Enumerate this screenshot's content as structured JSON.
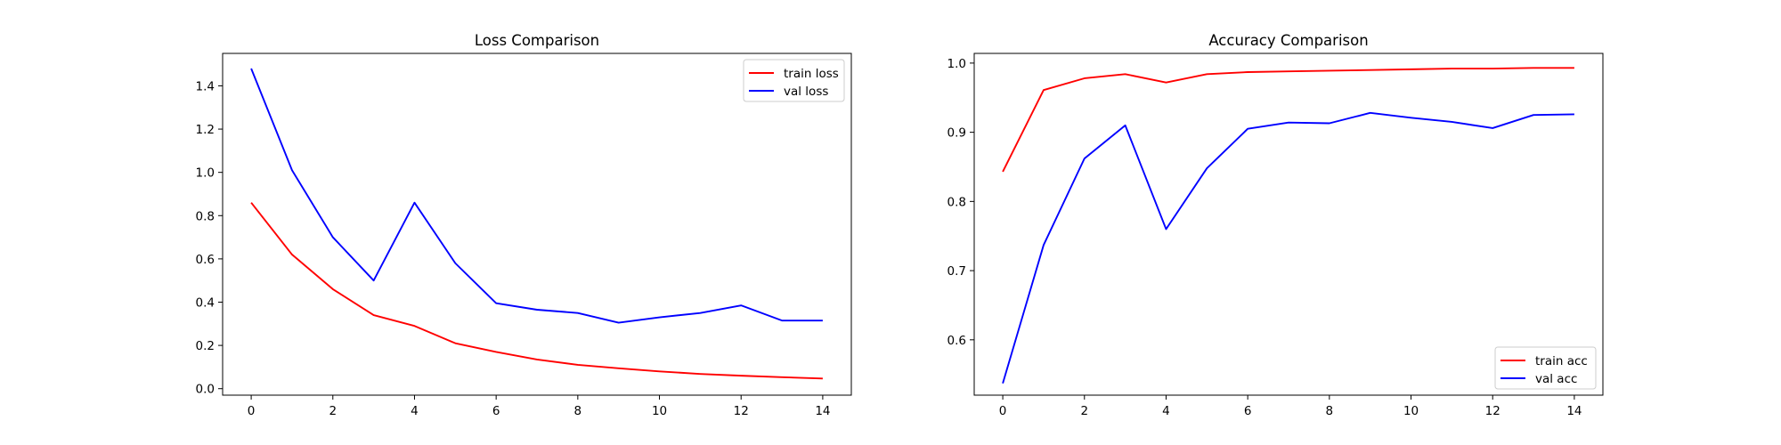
{
  "chart_data": [
    {
      "type": "line",
      "title": "Loss Comparison",
      "xlabel": "",
      "ylabel": "",
      "x": [
        0,
        1,
        2,
        3,
        4,
        5,
        6,
        7,
        8,
        9,
        10,
        11,
        12,
        13,
        14
      ],
      "xlim": [
        -0.7,
        14.7
      ],
      "ylim": [
        -0.03,
        1.55
      ],
      "xticks": [
        0,
        2,
        4,
        6,
        8,
        10,
        12,
        14
      ],
      "xtick_labels": [
        "0",
        "2",
        "4",
        "6",
        "8",
        "10",
        "12",
        "14"
      ],
      "yticks": [
        0.0,
        0.2,
        0.4,
        0.6,
        0.8,
        1.0,
        1.2,
        1.4
      ],
      "ytick_labels": [
        "0.0",
        "0.2",
        "0.4",
        "0.6",
        "0.8",
        "1.0",
        "1.2",
        "1.4"
      ],
      "legend_position": "top-right",
      "grid": false,
      "series": [
        {
          "name": "train loss",
          "color": "#ff0000",
          "values": [
            0.86,
            0.62,
            0.46,
            0.34,
            0.29,
            0.21,
            0.17,
            0.135,
            0.11,
            0.094,
            0.08,
            0.068,
            0.06,
            0.053,
            0.047
          ]
        },
        {
          "name": "val loss",
          "color": "#0000ff",
          "values": [
            1.48,
            1.01,
            0.7,
            0.5,
            0.86,
            0.58,
            0.395,
            0.365,
            0.35,
            0.305,
            0.33,
            0.35,
            0.385,
            0.315,
            0.315
          ]
        }
      ]
    },
    {
      "type": "line",
      "title": "Accuracy Comparison",
      "xlabel": "",
      "ylabel": "",
      "x": [
        0,
        1,
        2,
        3,
        4,
        5,
        6,
        7,
        8,
        9,
        10,
        11,
        12,
        13,
        14
      ],
      "xlim": [
        -0.7,
        14.7
      ],
      "ylim": [
        0.52,
        1.014
      ],
      "xticks": [
        0,
        2,
        4,
        6,
        8,
        10,
        12,
        14
      ],
      "xtick_labels": [
        "0",
        "2",
        "4",
        "6",
        "8",
        "10",
        "12",
        "14"
      ],
      "yticks": [
        0.6,
        0.7,
        0.8,
        0.9,
        1.0
      ],
      "ytick_labels": [
        "0.6",
        "0.7",
        "0.8",
        "0.9",
        "1.0"
      ],
      "legend_position": "bottom-right",
      "grid": false,
      "series": [
        {
          "name": "train acc",
          "color": "#ff0000",
          "values": [
            0.843,
            0.961,
            0.978,
            0.984,
            0.972,
            0.984,
            0.987,
            0.988,
            0.989,
            0.99,
            0.991,
            0.992,
            0.992,
            0.993,
            0.993
          ]
        },
        {
          "name": "val acc",
          "color": "#0000ff",
          "values": [
            0.537,
            0.737,
            0.862,
            0.91,
            0.76,
            0.848,
            0.905,
            0.914,
            0.913,
            0.928,
            0.921,
            0.915,
            0.906,
            0.925,
            0.926
          ]
        }
      ]
    }
  ]
}
